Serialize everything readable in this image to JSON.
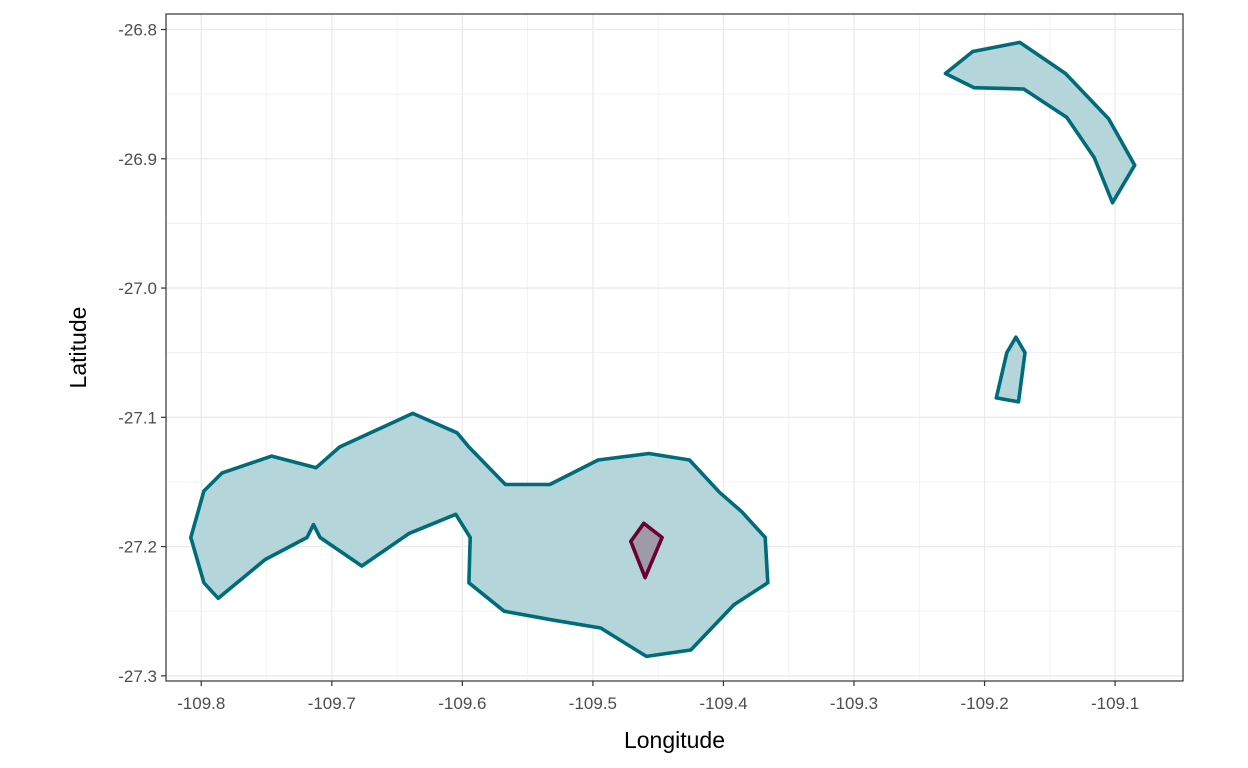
{
  "chart_data": {
    "type": "polygon-map",
    "title": "",
    "xlabel": "Longitude",
    "ylabel": "Latitude",
    "xlim": [
      -109.827,
      -109.048
    ],
    "ylim": [
      -27.304,
      -26.788
    ],
    "grid": true,
    "x_ticks": [
      -109.8,
      -109.7,
      -109.6,
      -109.5,
      -109.4,
      -109.3,
      -109.2,
      -109.1
    ],
    "x_tick_labels": [
      "-109.8",
      "-109.7",
      "-109.6",
      "-109.5",
      "-109.4",
      "-109.3",
      "-109.2",
      "-109.1"
    ],
    "y_ticks": [
      -26.8,
      -26.9,
      -27.0,
      -27.1,
      -27.2,
      -27.3
    ],
    "y_tick_labels": [
      "-26.8",
      "-26.9",
      "-27.0",
      "-27.1",
      "-27.2",
      "-27.3"
    ],
    "colors": {
      "teal_stroke": "#006c7a",
      "teal_fill": "#b4d5d9",
      "maroon_stroke": "#6b0033",
      "maroon_fill": "#9e9aa8",
      "grid": "#ebebeb",
      "panel_border": "#333333"
    },
    "polygons": [
      {
        "id": "main-island",
        "style": "teal",
        "coords": [
          [
            -109.808,
            -27.193
          ],
          [
            -109.798,
            -27.228
          ],
          [
            -109.787,
            -27.24
          ],
          [
            -109.751,
            -27.21
          ],
          [
            -109.719,
            -27.193
          ],
          [
            -109.714,
            -27.183
          ],
          [
            -109.709,
            -27.193
          ],
          [
            -109.677,
            -27.215
          ],
          [
            -109.641,
            -27.19
          ],
          [
            -109.605,
            -27.175
          ],
          [
            -109.594,
            -27.193
          ],
          [
            -109.595,
            -27.228
          ],
          [
            -109.568,
            -27.25
          ],
          [
            -109.53,
            -27.257
          ],
          [
            -109.494,
            -27.263
          ],
          [
            -109.459,
            -27.285
          ],
          [
            -109.425,
            -27.28
          ],
          [
            -109.392,
            -27.245
          ],
          [
            -109.366,
            -27.228
          ],
          [
            -109.368,
            -27.193
          ],
          [
            -109.386,
            -27.173
          ],
          [
            -109.403,
            -27.158
          ],
          [
            -109.426,
            -27.133
          ],
          [
            -109.457,
            -27.128
          ],
          [
            -109.496,
            -27.133
          ],
          [
            -109.533,
            -27.152
          ],
          [
            -109.567,
            -27.152
          ],
          [
            -109.595,
            -27.123
          ],
          [
            -109.604,
            -27.112
          ],
          [
            -109.638,
            -27.097
          ],
          [
            -109.694,
            -27.123
          ],
          [
            -109.712,
            -27.139
          ],
          [
            -109.746,
            -27.13
          ],
          [
            -109.784,
            -27.143
          ],
          [
            -109.798,
            -27.157
          ]
        ]
      },
      {
        "id": "northeast-crescent",
        "style": "teal",
        "coords": [
          [
            -109.23,
            -26.834
          ],
          [
            -109.209,
            -26.817
          ],
          [
            -109.173,
            -26.81
          ],
          [
            -109.138,
            -26.834
          ],
          [
            -109.105,
            -26.869
          ],
          [
            -109.085,
            -26.905
          ],
          [
            -109.102,
            -26.934
          ],
          [
            -109.116,
            -26.899
          ],
          [
            -109.137,
            -26.868
          ],
          [
            -109.17,
            -26.846
          ],
          [
            -109.208,
            -26.845
          ]
        ]
      },
      {
        "id": "small-islet",
        "style": "teal",
        "coords": [
          [
            -109.191,
            -27.085
          ],
          [
            -109.183,
            -27.05
          ],
          [
            -109.176,
            -27.038
          ],
          [
            -109.169,
            -27.05
          ],
          [
            -109.174,
            -27.088
          ]
        ]
      },
      {
        "id": "inner-polygon",
        "style": "maroon",
        "coords": [
          [
            -109.471,
            -27.196
          ],
          [
            -109.461,
            -27.182
          ],
          [
            -109.447,
            -27.193
          ],
          [
            -109.46,
            -27.224
          ]
        ]
      }
    ]
  }
}
